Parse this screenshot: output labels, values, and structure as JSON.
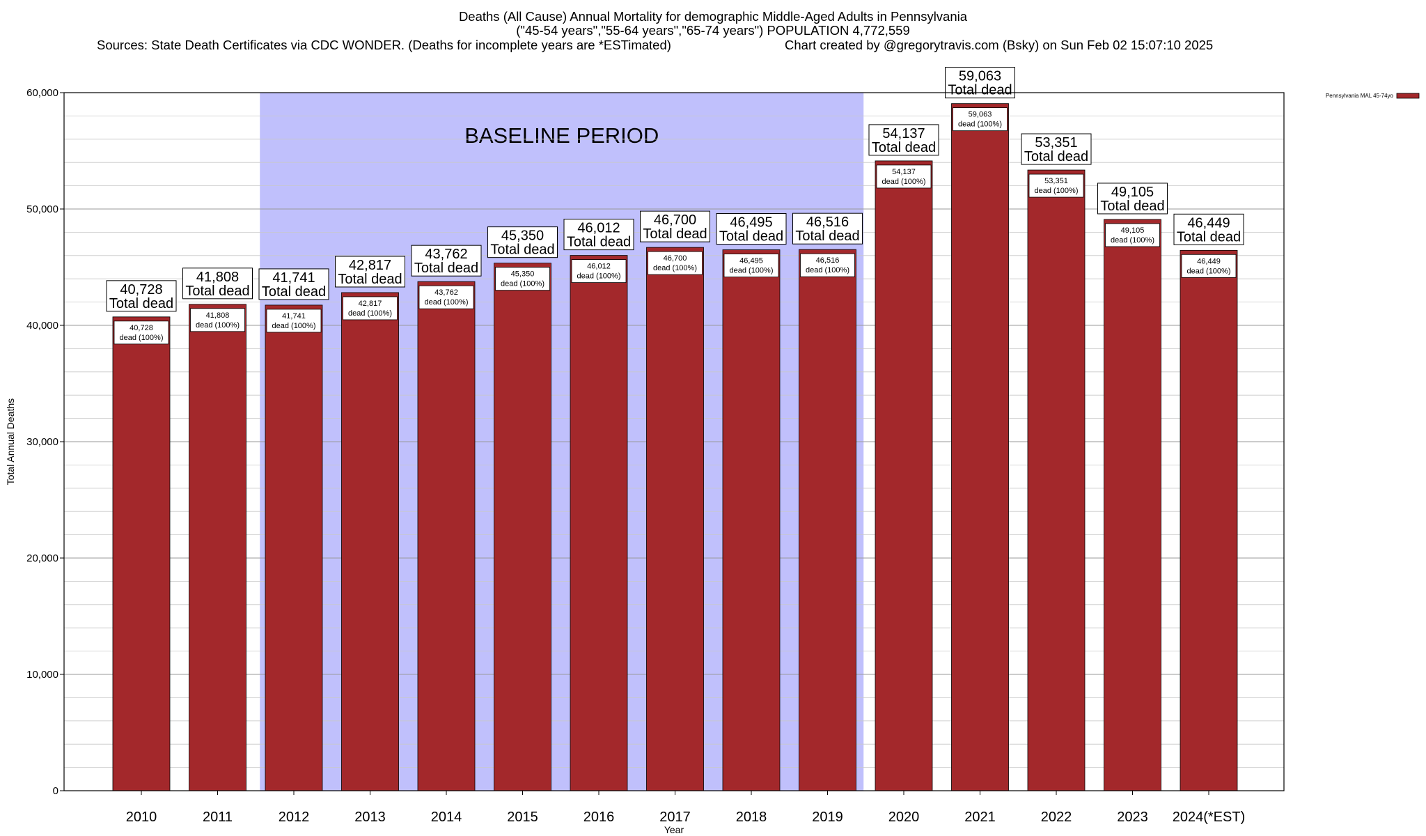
{
  "chart_data": {
    "type": "bar",
    "title_lines": [
      "Deaths (All Cause) Annual Mortality for demographic Middle-Aged Adults in Pennsylvania",
      "(\"45-54 years\",\"55-64 years\",\"65-74 years\") POPULATION 4,772,559"
    ],
    "sources": "Sources: State Death Certificates via CDC WONDER. (Deaths for incomplete years are *ESTimated)",
    "credit": "Chart created by @gregorytravis.com (Bsky) on Sun Feb 02 15:07:10 2025",
    "xlabel": "Year",
    "ylabel": "Total Annual Deaths",
    "ylim": [
      0,
      60000
    ],
    "y_ticks": [
      0,
      10000,
      20000,
      30000,
      40000,
      50000,
      60000
    ],
    "y_tick_labels": [
      "0",
      "10,000",
      "20,000",
      "30,000",
      "40,000",
      "50,000",
      "60,000"
    ],
    "grid": "horizontal",
    "legend_position": "top-right",
    "categories": [
      "2010",
      "2011",
      "2012",
      "2013",
      "2014",
      "2015",
      "2016",
      "2017",
      "2018",
      "2019",
      "2020",
      "2021",
      "2022",
      "2023",
      "2024(*EST)"
    ],
    "series": [
      {
        "name": "Pennsylvania MAL 45-74yo",
        "color": "#a3282b",
        "values": [
          40728,
          41808,
          41741,
          42817,
          43762,
          45350,
          46012,
          46700,
          46495,
          46516,
          54137,
          59063,
          53351,
          49105,
          46449
        ]
      }
    ],
    "value_labels": [
      "40,728",
      "41,808",
      "41,741",
      "42,817",
      "43,762",
      "45,350",
      "46,012",
      "46,700",
      "46,495",
      "46,516",
      "54,137",
      "59,063",
      "53,351",
      "49,105",
      "46,449"
    ],
    "top_label_suffix": "Total dead",
    "inner_label_suffix": "dead (100%)",
    "baseline_region": {
      "label": "BASELINE PERIOD",
      "from": "2012",
      "to": "2019",
      "color": "#c0c0fc"
    }
  }
}
